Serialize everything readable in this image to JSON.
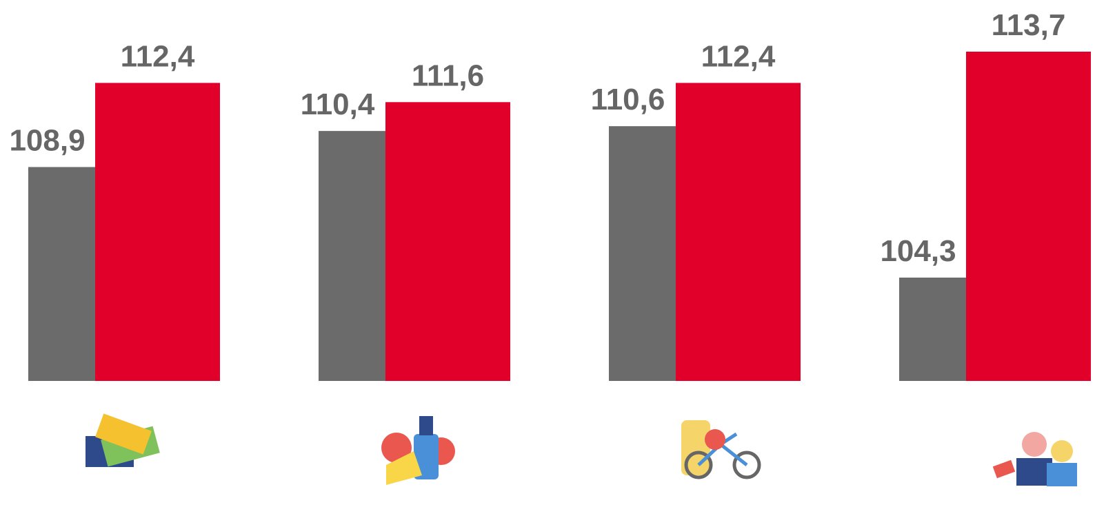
{
  "chart_data": {
    "type": "bar",
    "categories": [
      null,
      null,
      null,
      null
    ],
    "series": [
      {
        "color": "#6b6b6b",
        "values": [
          108.9,
          110.4,
          110.6,
          104.3
        ],
        "value_labels": [
          "108,9",
          "110,4",
          "110,6",
          "104,3"
        ]
      },
      {
        "color": "#e1002a",
        "values": [
          112.4,
          111.6,
          112.4,
          113.7
        ],
        "value_labels": [
          "112,4",
          "111,6",
          "112,4",
          "113,7"
        ]
      }
    ],
    "ylim": [
      100,
      115.85
    ],
    "grid": false
  }
}
